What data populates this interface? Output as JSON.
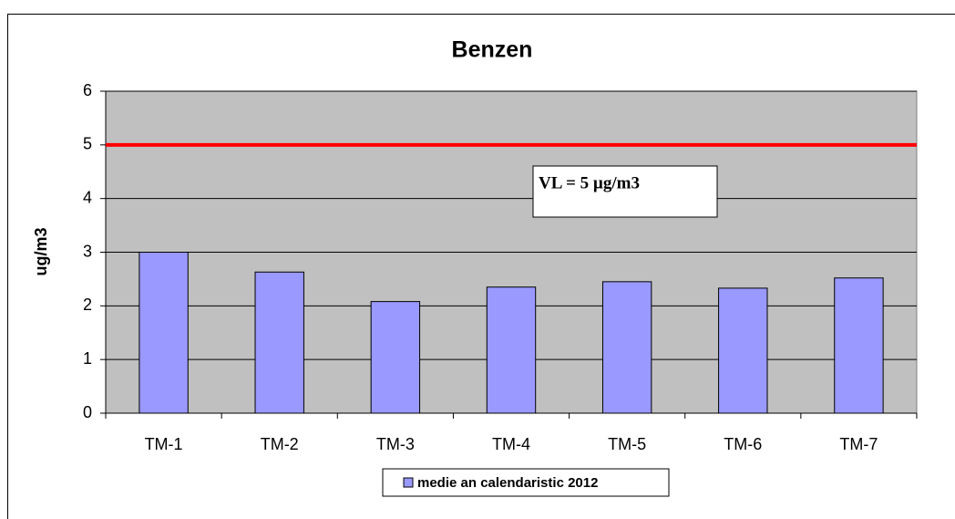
{
  "chart_data": {
    "type": "bar",
    "title": "Benzen",
    "y_label": "ug/m3",
    "categories": [
      "TM-1",
      "TM-2",
      "TM-3",
      "TM-4",
      "TM-5",
      "TM-6",
      "TM-7"
    ],
    "series": [
      {
        "name": "medie an calendaristic 2012",
        "color": "#9999ff",
        "values": [
          3.0,
          2.63,
          2.08,
          2.35,
          2.45,
          2.33,
          2.52
        ]
      }
    ],
    "ylim": [
      0,
      6
    ],
    "yticks": [
      0,
      1,
      2,
      3,
      4,
      5,
      6
    ],
    "grid": true,
    "reference_line": {
      "value": 5,
      "color": "#ff0000"
    },
    "annotation": "VL = 5 µg/m3",
    "legend": "bottom"
  }
}
